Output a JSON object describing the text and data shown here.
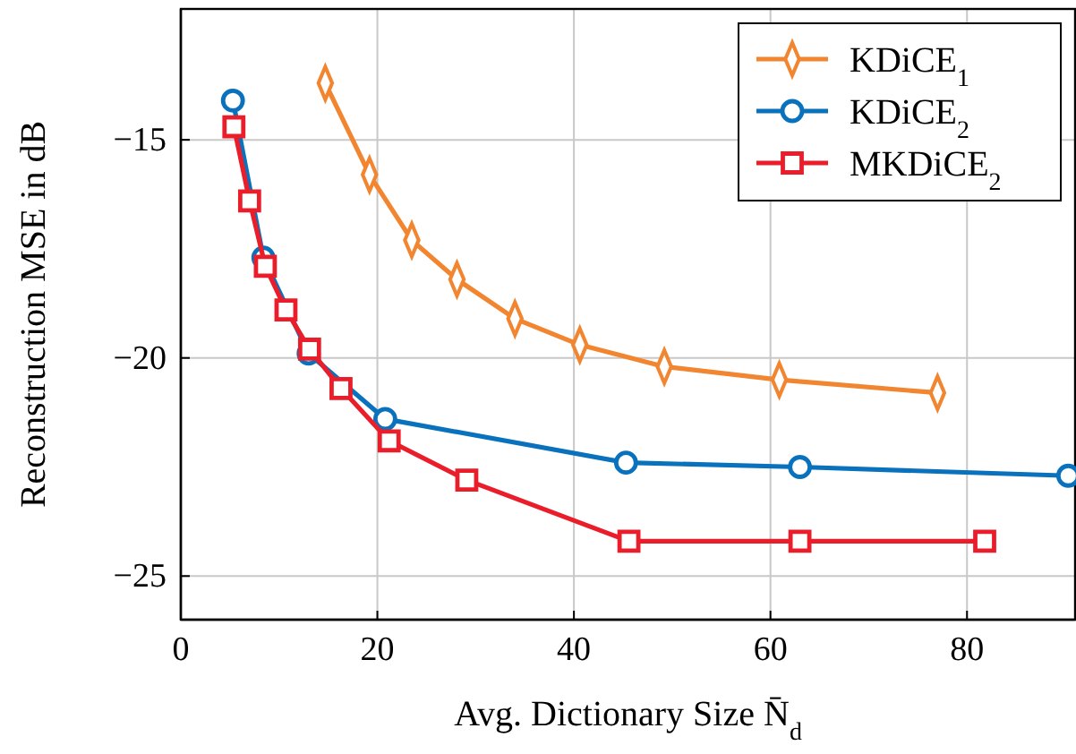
{
  "chart_data": {
    "type": "line",
    "xlabel": "Avg. Dictionary Size N̄$_{d}$",
    "ylabel": "Reconstruction MSE in dB",
    "xlim": [
      0,
      91
    ],
    "ylim": [
      -26,
      -12
    ],
    "xticks": [
      0,
      20,
      40,
      60,
      80
    ],
    "yticks": [
      {
        "value": -25,
        "label": "−25"
      },
      {
        "value": -20,
        "label": "−20"
      },
      {
        "value": -15,
        "label": "−15"
      }
    ],
    "grid": true,
    "legend": "top right",
    "line_style": "solid",
    "series": [
      {
        "name": "KDiCE$_{1}$",
        "color": "#f28530",
        "marker": "diamond",
        "x": [
          14.7,
          19.2,
          23.5,
          28.1,
          34.0,
          40.6,
          49.2,
          60.9,
          77.0
        ],
        "values": [
          -13.7,
          -15.8,
          -17.3,
          -18.2,
          -19.1,
          -19.7,
          -20.2,
          -20.5,
          -20.8
        ]
      },
      {
        "name": "KDiCE$_{2}$",
        "color": "#0a72bd",
        "marker": "circle",
        "x": [
          5.3,
          8.4,
          13.0,
          20.8,
          45.3,
          63.0,
          90.3
        ],
        "values": [
          -14.1,
          -17.7,
          -19.9,
          -21.4,
          -22.4,
          -22.5,
          -22.7
        ]
      },
      {
        "name": "MKDiCE$_{2}$",
        "color": "#ea1d2a",
        "marker": "square",
        "x": [
          5.4,
          7.0,
          8.6,
          10.7,
          13.1,
          16.3,
          21.2,
          29.1,
          45.6,
          63.0,
          81.8
        ],
        "values": [
          -14.7,
          -16.4,
          -17.9,
          -18.9,
          -19.8,
          -20.7,
          -21.9,
          -22.8,
          -24.2,
          -24.2,
          -24.2
        ]
      }
    ]
  }
}
